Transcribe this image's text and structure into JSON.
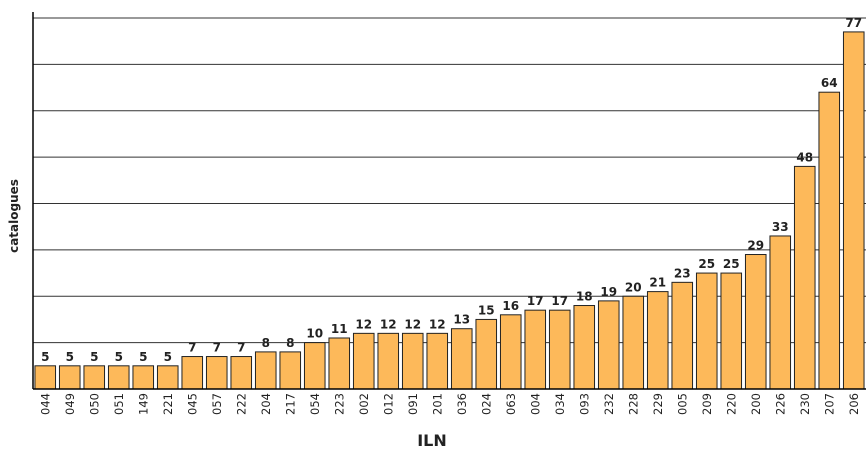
{
  "chart_data": {
    "type": "bar",
    "xlabel": "ILN",
    "ylabel": "catalogues",
    "categories": [
      "044",
      "049",
      "050",
      "051",
      "149",
      "221",
      "045",
      "057",
      "222",
      "204",
      "217",
      "054",
      "223",
      "002",
      "012",
      "091",
      "201",
      "036",
      "024",
      "063",
      "004",
      "034",
      "093",
      "232",
      "228",
      "229",
      "005",
      "209",
      "220",
      "200",
      "226",
      "230",
      "207",
      "206"
    ],
    "values": [
      5,
      5,
      5,
      5,
      5,
      5,
      7,
      7,
      7,
      8,
      8,
      10,
      11,
      12,
      12,
      12,
      12,
      13,
      15,
      16,
      17,
      17,
      18,
      19,
      20,
      21,
      23,
      25,
      25,
      29,
      33,
      48,
      64,
      77
    ],
    "ylim": [
      0,
      80
    ],
    "gridlines": true,
    "bar_color": "#FDB95A",
    "bar_stroke": "#222222"
  }
}
